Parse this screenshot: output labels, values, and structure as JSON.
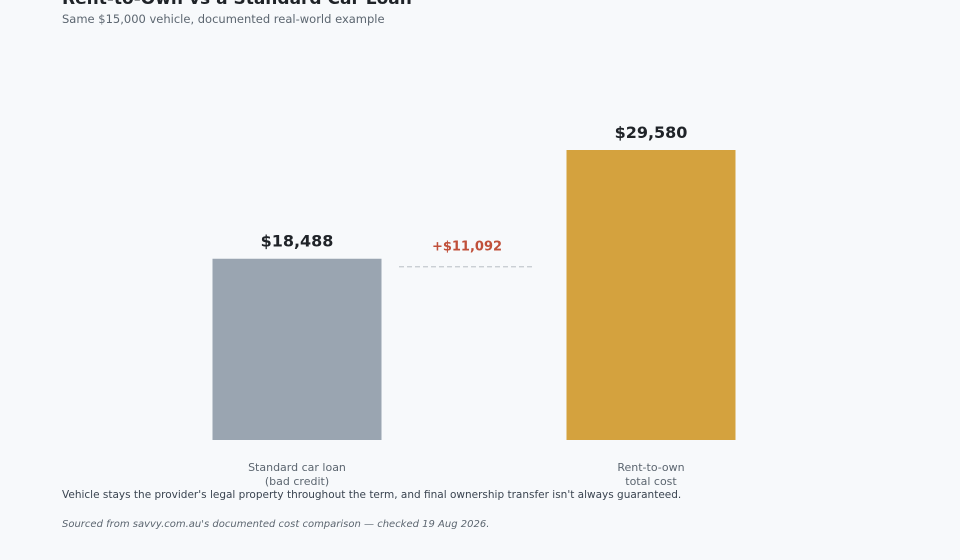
{
  "header": {
    "title": "Rent-to-Own vs a Standard Car Loan",
    "subtitle": "Same $15,000 vehicle, documented real-world example"
  },
  "footer": {
    "note": "Vehicle stays the provider's legal property throughout the term, and final ownership transfer isn't always guaranteed.",
    "source": "Sourced from savvy.com.au's documented cost comparison — checked 19 Aug 2026."
  },
  "chart_data": {
    "type": "bar",
    "title": "Rent-to-Own vs a Standard Car Loan",
    "subtitle": "Same $15,000 vehicle, documented real-world example",
    "categories": [
      [
        "Standard car loan",
        "(bad credit)"
      ],
      [
        "Rent-to-own",
        "total cost"
      ]
    ],
    "values": [
      18488,
      29580
    ],
    "value_labels": [
      "$18,488",
      "$29,580"
    ],
    "colors": [
      "#9aa5b1",
      "#d4a23e"
    ],
    "difference_label": "+$11,092",
    "difference_color": "#c0503a",
    "xlabel": "",
    "ylabel": "",
    "ylim": [
      0,
      29580
    ],
    "grid": false
  }
}
